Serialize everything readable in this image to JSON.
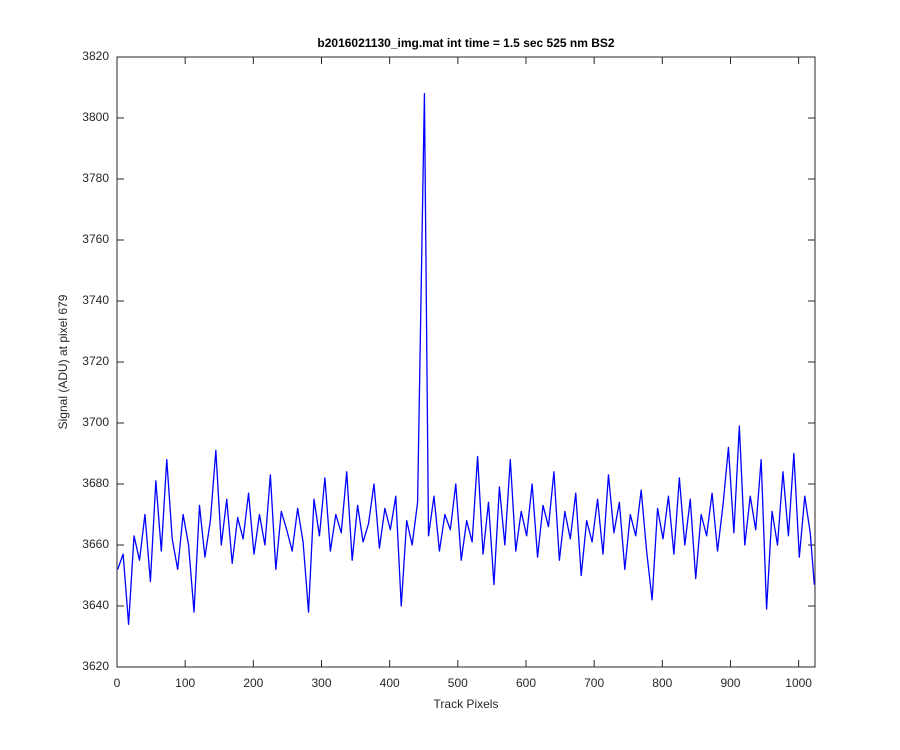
{
  "chart_data": {
    "type": "line",
    "title": "b2016021130_img.mat int time = 1.5 sec  525 nm BS2",
    "xlabel": "Track Pixels",
    "ylabel": "Signal (ADU) at pixel 679",
    "xlim": [
      0,
      1024
    ],
    "ylim": [
      3620,
      3820
    ],
    "xticks": [
      0,
      100,
      200,
      300,
      400,
      500,
      600,
      700,
      800,
      900,
      1000
    ],
    "yticks": [
      3620,
      3640,
      3660,
      3680,
      3700,
      3720,
      3740,
      3760,
      3780,
      3800,
      3820
    ],
    "grid": false,
    "series": [
      {
        "color": "#0000ff",
        "x": [
          1,
          9,
          17,
          25,
          33,
          41,
          49,
          57,
          65,
          73,
          81,
          89,
          97,
          105,
          113,
          121,
          129,
          137,
          145,
          153,
          161,
          169,
          177,
          185,
          193,
          201,
          209,
          217,
          225,
          233,
          241,
          249,
          257,
          265,
          273,
          281,
          289,
          297,
          305,
          313,
          321,
          329,
          337,
          345,
          353,
          361,
          369,
          377,
          385,
          393,
          401,
          409,
          417,
          425,
          433,
          441,
          451,
          457,
          465,
          473,
          481,
          489,
          497,
          505,
          513,
          521,
          529,
          537,
          545,
          553,
          561,
          569,
          577,
          585,
          593,
          601,
          609,
          617,
          625,
          633,
          641,
          649,
          657,
          665,
          673,
          681,
          689,
          697,
          705,
          713,
          721,
          729,
          737,
          745,
          753,
          761,
          769,
          777,
          785,
          793,
          801,
          809,
          817,
          825,
          833,
          841,
          849,
          857,
          865,
          873,
          881,
          889,
          897,
          905,
          913,
          921,
          929,
          937,
          945,
          953,
          961,
          969,
          977,
          985,
          993,
          1001,
          1009,
          1017,
          1023
        ],
        "values": [
          3652,
          3657,
          3634,
          3663,
          3655,
          3670,
          3648,
          3681,
          3658,
          3688,
          3662,
          3652,
          3670,
          3660,
          3638,
          3673,
          3656,
          3668,
          3691,
          3660,
          3675,
          3654,
          3669,
          3662,
          3677,
          3657,
          3670,
          3660,
          3683,
          3652,
          3671,
          3665,
          3658,
          3672,
          3661,
          3638,
          3675,
          3663,
          3682,
          3658,
          3670,
          3664,
          3684,
          3655,
          3673,
          3661,
          3667,
          3680,
          3659,
          3672,
          3665,
          3676,
          3640,
          3668,
          3660,
          3674,
          3808,
          3663,
          3676,
          3658,
          3670,
          3665,
          3680,
          3655,
          3668,
          3661,
          3689,
          3657,
          3674,
          3647,
          3679,
          3660,
          3688,
          3658,
          3671,
          3663,
          3680,
          3656,
          3673,
          3666,
          3684,
          3655,
          3671,
          3662,
          3677,
          3650,
          3668,
          3661,
          3675,
          3657,
          3683,
          3664,
          3674,
          3652,
          3670,
          3663,
          3678,
          3658,
          3642,
          3672,
          3662,
          3676,
          3657,
          3682,
          3660,
          3675,
          3649,
          3670,
          3663,
          3677,
          3658,
          3673,
          3692,
          3664,
          3699,
          3660,
          3676,
          3665,
          3688,
          3639,
          3671,
          3660,
          3684,
          3663,
          3690,
          3656,
          3676,
          3664,
          3647
        ]
      }
    ]
  }
}
